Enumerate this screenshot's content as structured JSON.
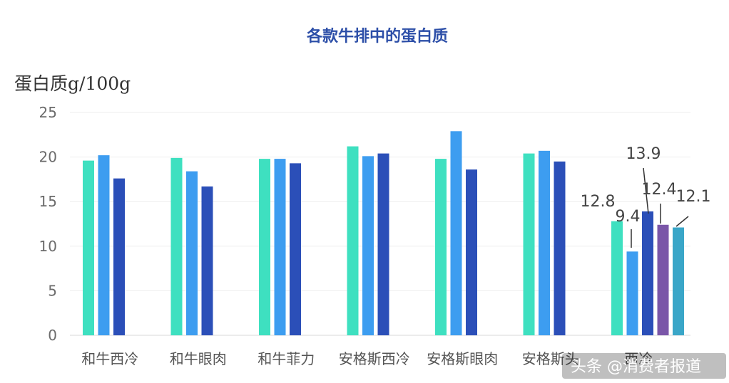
{
  "chart_data": {
    "type": "bar",
    "title": "各款牛排中的蛋白质",
    "ylabel": "蛋白质g/100g",
    "xlabel": "",
    "ylim": [
      0,
      25
    ],
    "yticks": [
      0,
      5,
      10,
      15,
      20,
      25
    ],
    "grid": true,
    "categories": [
      "和牛西冷",
      "和牛眼肉",
      "和牛菲力",
      "安格斯西冷",
      "安格斯眼肉",
      "安格斯头",
      "西冷"
    ],
    "series": [
      {
        "values": [
          19.6,
          19.9,
          19.8,
          21.2,
          19.8,
          20.4,
          12.8
        ],
        "color": "#3ee0c0"
      },
      {
        "values": [
          20.2,
          18.4,
          19.8,
          20.1,
          22.9,
          20.7,
          9.4
        ],
        "color": "#3d9df0"
      },
      {
        "values": [
          17.6,
          16.7,
          19.3,
          20.4,
          18.6,
          19.5,
          13.9
        ],
        "color": "#2b4fb8"
      },
      {
        "values": [
          null,
          null,
          null,
          null,
          null,
          null,
          12.4
        ],
        "color": "#7a56a8"
      },
      {
        "values": [
          null,
          null,
          null,
          null,
          null,
          null,
          12.1
        ],
        "color": "#3aa6c8"
      }
    ],
    "data_labels": [
      "12.8",
      "9.4",
      "13.9",
      "12.4",
      "12.1"
    ]
  },
  "watermark": "头条 @消费者报道"
}
